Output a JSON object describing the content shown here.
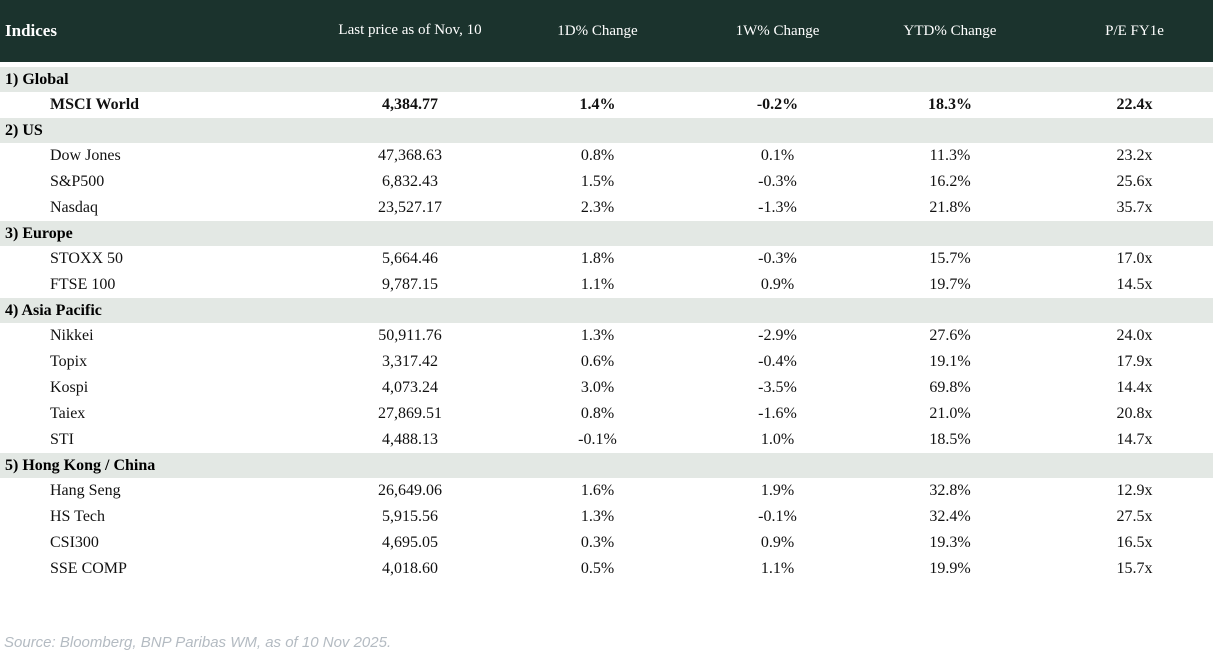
{
  "table": {
    "title": "Indices",
    "columns": {
      "price": "Last price as of Nov, 10",
      "d1": "1D% Change",
      "w1": "1W% Change",
      "ytd": "YTD% Change",
      "pe": "P/E FY1e"
    },
    "sections": [
      {
        "label": "1) Global",
        "rows": [
          {
            "name": "MSCI World",
            "bold": true,
            "price": "4,384.77",
            "d1": "1.4%",
            "w1": "-0.2%",
            "ytd": "18.3%",
            "pe": "22.4x"
          }
        ]
      },
      {
        "label": "2) US",
        "rows": [
          {
            "name": "Dow Jones",
            "bold": false,
            "price": "47,368.63",
            "d1": "0.8%",
            "w1": "0.1%",
            "ytd": "11.3%",
            "pe": "23.2x"
          },
          {
            "name": "S&P500",
            "bold": false,
            "price": "6,832.43",
            "d1": "1.5%",
            "w1": "-0.3%",
            "ytd": "16.2%",
            "pe": "25.6x"
          },
          {
            "name": "Nasdaq",
            "bold": false,
            "price": "23,527.17",
            "d1": "2.3%",
            "w1": "-1.3%",
            "ytd": "21.8%",
            "pe": "35.7x"
          }
        ]
      },
      {
        "label": "3) Europe",
        "rows": [
          {
            "name": "STOXX 50",
            "bold": false,
            "price": "5,664.46",
            "d1": "1.8%",
            "w1": "-0.3%",
            "ytd": "15.7%",
            "pe": "17.0x"
          },
          {
            "name": "FTSE 100",
            "bold": false,
            "price": "9,787.15",
            "d1": "1.1%",
            "w1": "0.9%",
            "ytd": "19.7%",
            "pe": "14.5x"
          }
        ]
      },
      {
        "label": "4) Asia Pacific",
        "rows": [
          {
            "name": "Nikkei",
            "bold": false,
            "price": "50,911.76",
            "d1": "1.3%",
            "w1": "-2.9%",
            "ytd": "27.6%",
            "pe": "24.0x"
          },
          {
            "name": "Topix",
            "bold": false,
            "price": "3,317.42",
            "d1": "0.6%",
            "w1": "-0.4%",
            "ytd": "19.1%",
            "pe": "17.9x"
          },
          {
            "name": "Kospi",
            "bold": false,
            "price": "4,073.24",
            "d1": "3.0%",
            "w1": "-3.5%",
            "ytd": "69.8%",
            "pe": "14.4x"
          },
          {
            "name": "Taiex",
            "bold": false,
            "price": "27,869.51",
            "d1": "0.8%",
            "w1": "-1.6%",
            "ytd": "21.0%",
            "pe": "20.8x"
          },
          {
            "name": "STI",
            "bold": false,
            "price": "4,488.13",
            "d1": "-0.1%",
            "w1": "1.0%",
            "ytd": "18.5%",
            "pe": "14.7x"
          }
        ]
      },
      {
        "label": "5) Hong Kong / China",
        "rows": [
          {
            "name": "Hang Seng",
            "bold": false,
            "price": "26,649.06",
            "d1": "1.6%",
            "w1": "1.9%",
            "ytd": "32.8%",
            "pe": "12.9x"
          },
          {
            "name": "HS Tech",
            "bold": false,
            "price": "5,915.56",
            "d1": "1.3%",
            "w1": "-0.1%",
            "ytd": "32.4%",
            "pe": "27.5x"
          },
          {
            "name": "CSI300",
            "bold": false,
            "price": "4,695.05",
            "d1": "0.3%",
            "w1": "0.9%",
            "ytd": "19.3%",
            "pe": "16.5x"
          },
          {
            "name": "SSE COMP",
            "bold": false,
            "price": "4,018.60",
            "d1": "0.5%",
            "w1": "1.1%",
            "ytd": "19.9%",
            "pe": "15.7x"
          }
        ]
      }
    ]
  },
  "footer": {
    "source": "Source: Bloomberg, BNP Paribas WM, as of 10 Nov 2025."
  },
  "colors": {
    "header_bg": "#1b332d",
    "header_text": "#ffffff",
    "section_bg": "#e3e8e4",
    "positive": "#008000",
    "negative": "#c00021",
    "footer_text": "#b4bbc2"
  }
}
